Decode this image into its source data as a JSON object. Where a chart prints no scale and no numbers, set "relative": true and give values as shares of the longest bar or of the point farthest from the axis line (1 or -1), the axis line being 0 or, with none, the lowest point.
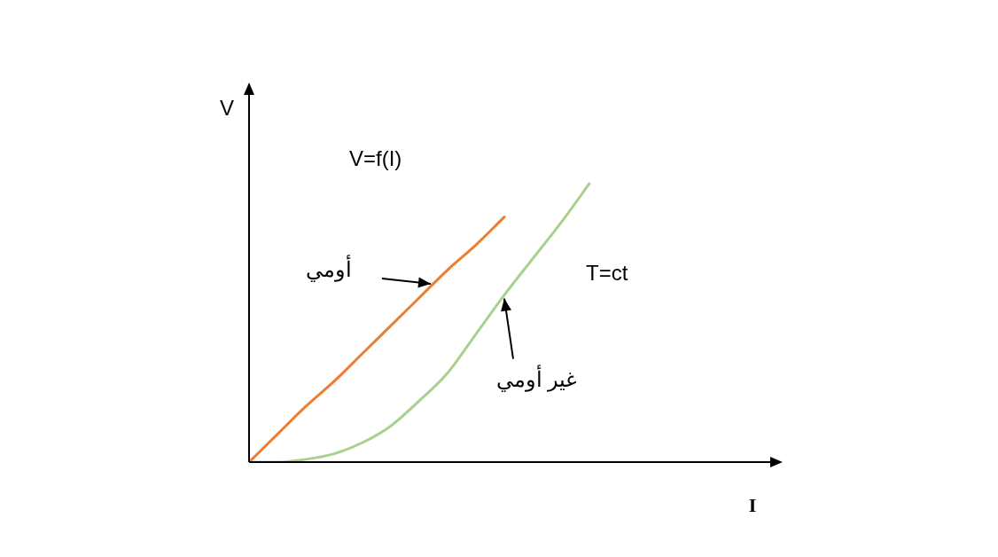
{
  "chart_data": {
    "type": "line",
    "title": "V=f(I)",
    "xlabel": "I",
    "ylabel": "V",
    "relative": true,
    "legend": false,
    "marker": "none",
    "line_style": "solid",
    "categories": [
      null,
      null,
      null,
      null,
      null,
      null,
      null,
      null,
      null,
      null,
      null,
      null,
      null,
      null,
      null,
      null,
      null,
      null,
      null,
      null
    ],
    "series": [
      {
        "name": "أومي",
        "color": "#ed7d31",
        "values": [
          0,
          0.1,
          0.2,
          0.29,
          0.39,
          0.49,
          0.59,
          0.69,
          0.78,
          0.88,
          null,
          null,
          null,
          null,
          null,
          null,
          null,
          null,
          null,
          null
        ]
      },
      {
        "name": "غير أومي",
        "color": "#a9d18e",
        "values": [
          0,
          0,
          0.01,
          0.03,
          0.07,
          0.13,
          0.22,
          0.32,
          0.46,
          0.6,
          0.73,
          0.86,
          1,
          null,
          null,
          null,
          null,
          null,
          null,
          null
        ]
      }
    ],
    "annotations": [
      "T=ct"
    ]
  }
}
